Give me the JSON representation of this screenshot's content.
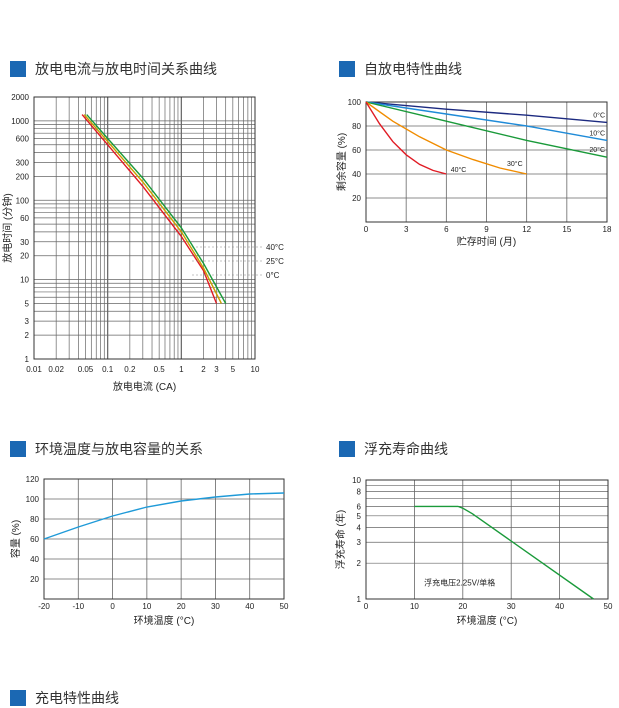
{
  "colors": {
    "accent": "#1b68b3"
  },
  "sections": [
    {
      "title": "放电电流与放电时间关系曲线"
    },
    {
      "title": "自放电特性曲线"
    },
    {
      "title": "环境温度与放电容量的关系"
    },
    {
      "title": "浮充寿命曲线"
    },
    {
      "title": "充电特性曲线"
    }
  ],
  "chart_data": [
    {
      "type": "line",
      "title": "放电电流与放电时间关系曲线",
      "xlabel": "放电电流 (CA)",
      "ylabel": "放电时间 (分钟)",
      "xscale": "log",
      "yscale": "log",
      "xlim": [
        0.01,
        10
      ],
      "ylim": [
        1,
        2000
      ],
      "xticks": [
        "0.01",
        "0.02",
        "0.05",
        "0.1",
        "0.2",
        "0.5",
        "1",
        "2",
        "3",
        "5",
        "10"
      ],
      "yticks": [
        "1",
        "2",
        "3",
        "5",
        "10",
        "20",
        "30",
        "60",
        "100",
        "200",
        "300",
        "600",
        "1000",
        "2000"
      ],
      "grid": true,
      "series": [
        {
          "name": "40°C",
          "color": "#e01b24",
          "x": [
            0.045,
            0.1,
            0.3,
            1,
            2,
            3
          ],
          "y": [
            1200,
            500,
            150,
            35,
            13,
            5
          ]
        },
        {
          "name": "25°C",
          "color": "#c8a000",
          "x": [
            0.048,
            0.1,
            0.3,
            1,
            2,
            3.5
          ],
          "y": [
            1200,
            550,
            170,
            40,
            14,
            5
          ]
        },
        {
          "name": "0°C",
          "color": "#1a9a3a",
          "x": [
            0.052,
            0.1,
            0.3,
            1,
            2,
            4
          ],
          "y": [
            1200,
            600,
            190,
            45,
            16,
            5
          ]
        }
      ]
    },
    {
      "type": "line",
      "title": "自放电特性曲线",
      "xlabel": "贮存时间 (月)",
      "ylabel": "剩余容量 (%)",
      "xlim": [
        0,
        18
      ],
      "ylim": [
        0,
        100
      ],
      "xticks": [
        "0",
        "3",
        "6",
        "9",
        "12",
        "15",
        "18"
      ],
      "yticks": [
        "20",
        "40",
        "60",
        "80",
        "100"
      ],
      "grid": true,
      "series": [
        {
          "name": "0°C",
          "color": "#1c2a80",
          "x": [
            0,
            6,
            12,
            18
          ],
          "y": [
            100,
            94,
            89,
            83
          ]
        },
        {
          "name": "10°C",
          "color": "#1f8bd8",
          "x": [
            0,
            6,
            12,
            18
          ],
          "y": [
            100,
            90,
            80,
            68
          ]
        },
        {
          "name": "20°C",
          "color": "#1a9a3a",
          "x": [
            0,
            6,
            12,
            18
          ],
          "y": [
            100,
            84,
            68,
            54
          ]
        },
        {
          "name": "30°C",
          "color": "#f08c00",
          "x": [
            0,
            2,
            4,
            6,
            8,
            10,
            12
          ],
          "y": [
            100,
            84,
            71,
            60,
            52,
            45,
            40
          ]
        },
        {
          "name": "40°C",
          "color": "#e01b24",
          "x": [
            0,
            1,
            2,
            3,
            4,
            5,
            6
          ],
          "y": [
            100,
            82,
            67,
            56,
            48,
            43,
            40
          ]
        }
      ]
    },
    {
      "type": "line",
      "title": "环境温度与放电容量的关系",
      "xlabel": "环境温度 (°C)",
      "ylabel": "容量 (%)",
      "xlim": [
        -20,
        50
      ],
      "ylim": [
        0,
        120
      ],
      "xticks": [
        "-20",
        "-10",
        "0",
        "10",
        "20",
        "30",
        "40",
        "50"
      ],
      "yticks": [
        "20",
        "40",
        "60",
        "80",
        "100",
        "120"
      ],
      "grid": true,
      "series": [
        {
          "color": "#1f9ad8",
          "x": [
            -20,
            -10,
            0,
            10,
            20,
            30,
            40,
            50
          ],
          "y": [
            60,
            72,
            83,
            92,
            98,
            102,
            105,
            106
          ]
        }
      ]
    },
    {
      "type": "line",
      "title": "浮充寿命曲线",
      "xlabel": "环境温度 (°C)",
      "ylabel": "浮充寿命 (年)",
      "annotation": "浮充电压2.25V/单格",
      "yscale": "log",
      "xlim": [
        0,
        50
      ],
      "ylim": [
        1,
        10
      ],
      "xticks": [
        "0",
        "10",
        "20",
        "30",
        "40",
        "50"
      ],
      "yticks": [
        "1",
        "2",
        "3",
        "4",
        "5",
        "6",
        "8",
        "10"
      ],
      "grid": true,
      "series": [
        {
          "color": "#1a9a3a",
          "x": [
            10,
            19,
            20,
            22,
            47
          ],
          "y": [
            6,
            6,
            5.8,
            5.2,
            1
          ]
        }
      ]
    }
  ]
}
